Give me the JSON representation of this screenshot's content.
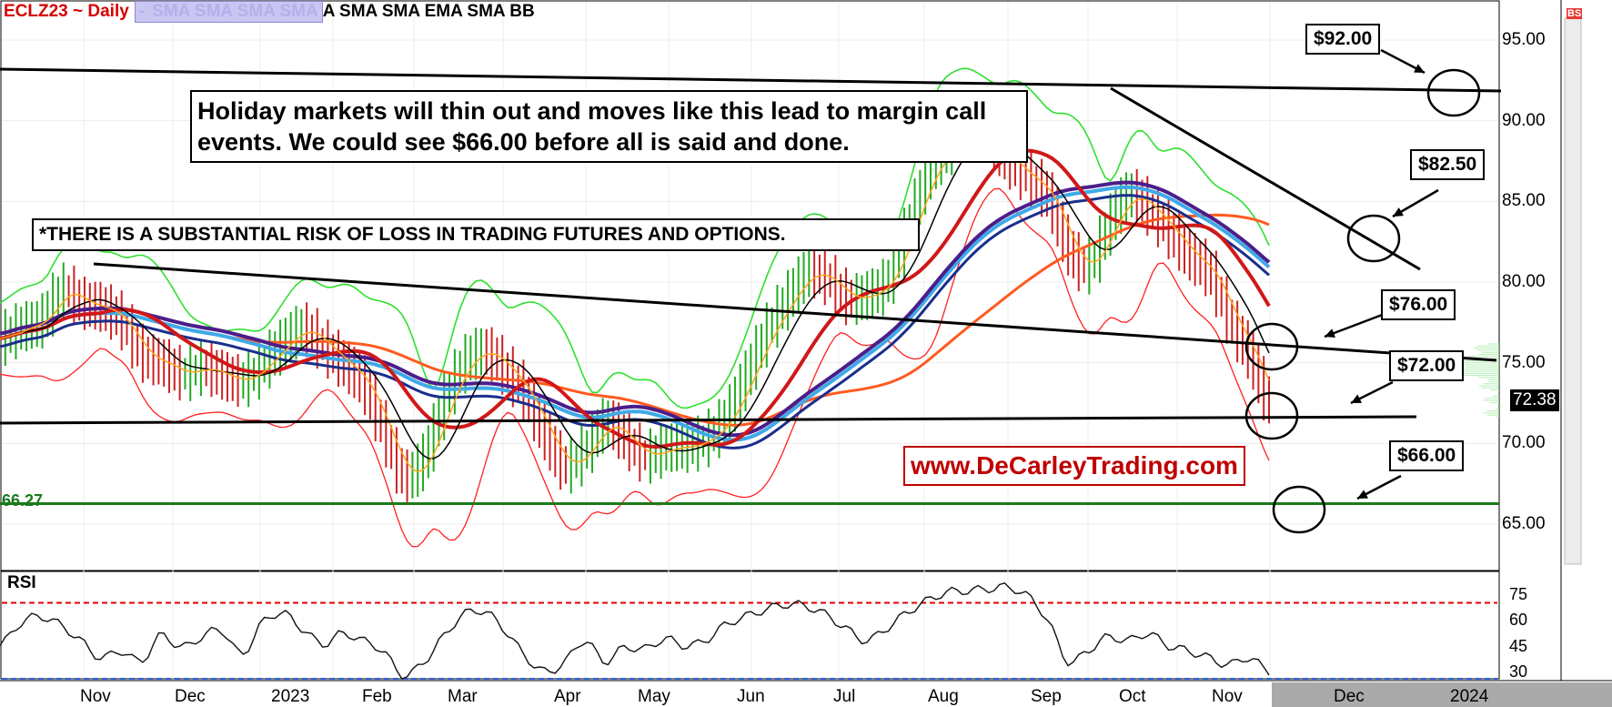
{
  "header": {
    "symbol": "ECLZ23 ~ Daily",
    "dash": "-",
    "studies_hidden": "SMA SMA SMA SMA",
    "studies_visible": "A SMA SMA EMA SMA BB"
  },
  "callouts": {
    "holiday": "Holiday markets will thin out and moves like this lead to margin call events. We could see $66.00 before all is said and done.",
    "risk": "*THERE IS A SUBSTANTIAL RISK OF LOSS IN TRADING FUTURES AND OPTIONS.",
    "website": "www.DeCarleyTrading.com"
  },
  "price_tags": {
    "t92": "$92.00",
    "t82": "$82.50",
    "t76": "$76.00",
    "t72": "$72.00",
    "t66": "$66.00"
  },
  "support_label": "66.27",
  "last_price": "72.38",
  "bs_icon": "BS",
  "rsi_title": "RSI",
  "colors": {
    "bar_up": "#22aa22",
    "bar_down": "#cc2222",
    "sma_red": "#d01818",
    "sma_purple": "#4a1e8a",
    "sma_navy": "#1a2e8c",
    "ema_lightblue": "#3fa9e8",
    "sma_orange": "#ff5a1f",
    "bb_upper": "#2ee02e",
    "bb_lower": "#ff2020",
    "support": "#1a7a1a",
    "rsi_overbought": "#e00000",
    "rsi_oversold": "#2a5fe0",
    "site_border": "#c00000"
  },
  "chart_data": {
    "type": "candlestick",
    "title": "ECLZ23 ~ Daily",
    "x_labels": [
      "Nov",
      "Dec",
      "2023",
      "Feb",
      "Mar",
      "Apr",
      "May",
      "Jun",
      "Jul",
      "Aug",
      "Sep",
      "Oct",
      "Nov",
      "Dec",
      "2024"
    ],
    "y_ticks": [
      "95.00",
      "90.00",
      "85.00",
      "80.00",
      "75.00",
      "70.00",
      "65.00"
    ],
    "ylim": [
      62,
      98
    ],
    "rsi_ticks": [
      "75",
      "60",
      "45",
      "30"
    ],
    "rsi_range": [
      25,
      82
    ],
    "rsi_levels": [
      70,
      30
    ],
    "close_series": [
      [
        0,
        76.5
      ],
      [
        1,
        77.2
      ],
      [
        2,
        77.6
      ],
      [
        3,
        79.5
      ],
      [
        4,
        78.7
      ],
      [
        5,
        78.4
      ],
      [
        6,
        77.5
      ],
      [
        7,
        75.5
      ],
      [
        8,
        75.0
      ],
      [
        9,
        74.3
      ],
      [
        10,
        74.7
      ],
      [
        11,
        74.2
      ],
      [
        12,
        73.9
      ],
      [
        13,
        74.9
      ],
      [
        14,
        76.2
      ],
      [
        15,
        77.1
      ],
      [
        16,
        76.0
      ],
      [
        17,
        74.9
      ],
      [
        18,
        73.6
      ],
      [
        19,
        70.7
      ],
      [
        20,
        68.0
      ],
      [
        21,
        69.1
      ],
      [
        22,
        72.6
      ],
      [
        23,
        75.0
      ],
      [
        24,
        75.7
      ],
      [
        25,
        74.6
      ],
      [
        26,
        73.0
      ],
      [
        27,
        70.5
      ],
      [
        28,
        68.6
      ],
      [
        29,
        69.6
      ],
      [
        30,
        71.3
      ],
      [
        31,
        70.2
      ],
      [
        32,
        69.2
      ],
      [
        33,
        69.7
      ],
      [
        34,
        69.8
      ],
      [
        35,
        70.3
      ],
      [
        36,
        71.6
      ],
      [
        37,
        74.2
      ],
      [
        38,
        76.9
      ],
      [
        39,
        78.9
      ],
      [
        40,
        80.5
      ],
      [
        41,
        80.2
      ],
      [
        42,
        79.0
      ],
      [
        43,
        79.2
      ],
      [
        44,
        80.1
      ],
      [
        45,
        83.3
      ],
      [
        46,
        86.7
      ],
      [
        47,
        88.3
      ],
      [
        48,
        89.6
      ],
      [
        49,
        88.9
      ],
      [
        50,
        87.5
      ],
      [
        51,
        86.4
      ],
      [
        52,
        85.2
      ],
      [
        53,
        82.0
      ],
      [
        54,
        81.0
      ],
      [
        55,
        83.6
      ],
      [
        56,
        85.4
      ],
      [
        57,
        84.5
      ],
      [
        58,
        83.1
      ],
      [
        59,
        81.6
      ],
      [
        60,
        80.5
      ],
      [
        61,
        77.6
      ],
      [
        62,
        75.4
      ],
      [
        63,
        72.4
      ]
    ],
    "rsi_series": [
      [
        0,
        45
      ],
      [
        1,
        58
      ],
      [
        2,
        62
      ],
      [
        3,
        57
      ],
      [
        4,
        48
      ],
      [
        5,
        38
      ],
      [
        6,
        42
      ],
      [
        7,
        36
      ],
      [
        8,
        51
      ],
      [
        9,
        44
      ],
      [
        10,
        50
      ],
      [
        11,
        54
      ],
      [
        12,
        40
      ],
      [
        13,
        58
      ],
      [
        14,
        64
      ],
      [
        15,
        55
      ],
      [
        16,
        46
      ],
      [
        17,
        52
      ],
      [
        18,
        48
      ],
      [
        19,
        42
      ],
      [
        20,
        28
      ],
      [
        21,
        35
      ],
      [
        22,
        50
      ],
      [
        23,
        63
      ],
      [
        24,
        65
      ],
      [
        25,
        55
      ],
      [
        26,
        40
      ],
      [
        27,
        30
      ],
      [
        28,
        35
      ],
      [
        29,
        48
      ],
      [
        30,
        36
      ],
      [
        31,
        44
      ],
      [
        32,
        43
      ],
      [
        33,
        49
      ],
      [
        34,
        45
      ],
      [
        35,
        48
      ],
      [
        36,
        57
      ],
      [
        37,
        62
      ],
      [
        38,
        66
      ],
      [
        39,
        69
      ],
      [
        40,
        68
      ],
      [
        41,
        63
      ],
      [
        42,
        55
      ],
      [
        43,
        48
      ],
      [
        44,
        55
      ],
      [
        45,
        64
      ],
      [
        46,
        71
      ],
      [
        47,
        76
      ],
      [
        48,
        77
      ],
      [
        49,
        78
      ],
      [
        50,
        79
      ],
      [
        51,
        74
      ],
      [
        52,
        60
      ],
      [
        53,
        36
      ],
      [
        54,
        42
      ],
      [
        55,
        50
      ],
      [
        56,
        48
      ],
      [
        57,
        52
      ],
      [
        58,
        45
      ],
      [
        59,
        42
      ],
      [
        60,
        38
      ],
      [
        61,
        34
      ],
      [
        62,
        38
      ],
      [
        63,
        30
      ]
    ],
    "horizontal_levels": [
      {
        "value": 66.27,
        "label": "66.27"
      }
    ],
    "price_targets": [
      92.0,
      82.5,
      76.0,
      72.0,
      66.0
    ],
    "indicators": [
      "SMA",
      "SMA",
      "SMA",
      "SMA",
      "SMA",
      "SMA",
      "SMA",
      "EMA",
      "SMA",
      "BB"
    ]
  }
}
